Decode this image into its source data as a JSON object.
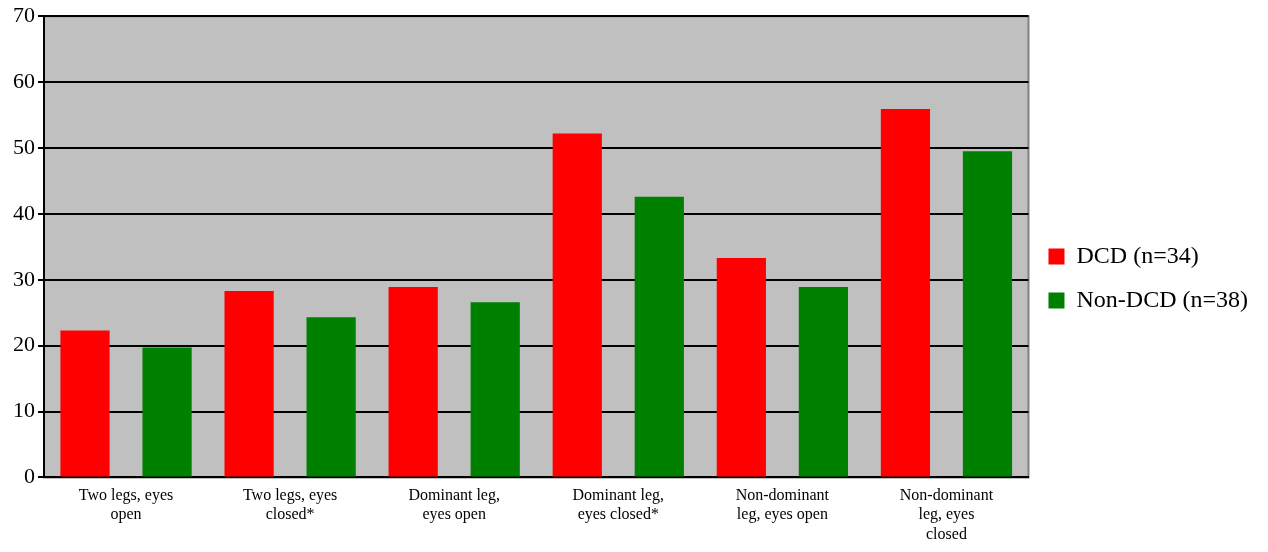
{
  "chart_data": {
    "type": "bar",
    "categories": [
      "Two legs, eyes open",
      "Two legs, eyes closed*",
      "Dominant leg, eyes open",
      "Dominant leg, eyes closed*",
      "Non-dominant leg, eyes open",
      "Non-dominant leg, eyes closed"
    ],
    "series": [
      {
        "name": "DCD (n=34)",
        "color": "#ff0000",
        "values": [
          22.3,
          28.3,
          28.9,
          52.2,
          33.3,
          55.9
        ]
      },
      {
        "name": "Non-DCD (n=38)",
        "color": "#008000",
        "values": [
          19.7,
          24.3,
          26.6,
          42.6,
          28.9,
          49.5
        ]
      }
    ],
    "ylim": [
      0,
      70
    ],
    "yticks": [
      0,
      10,
      20,
      30,
      40,
      50,
      60,
      70
    ],
    "grid": "y",
    "legend": "right"
  }
}
